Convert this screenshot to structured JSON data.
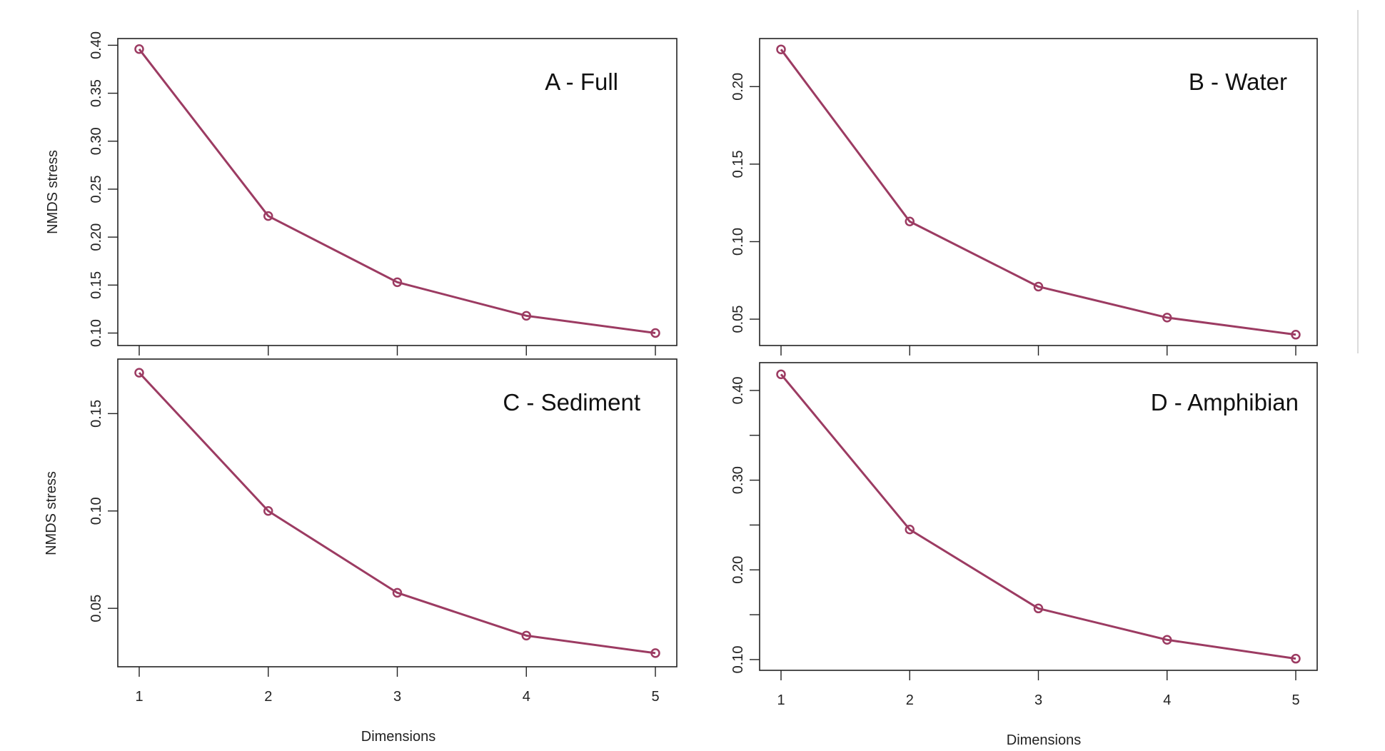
{
  "chart_data": [
    {
      "type": "line",
      "title": "A - Full",
      "xlabel": "",
      "ylabel": "NMDS stress",
      "x": [
        1,
        2,
        3,
        4,
        5
      ],
      "x_ticks": [
        1,
        2,
        3,
        4,
        5
      ],
      "show_x_tick_labels": false,
      "series": [
        {
          "values": [
            0.396,
            0.222,
            0.153,
            0.118,
            0.1
          ]
        }
      ],
      "xlim": [
        0.9,
        5.1
      ],
      "ylim": [
        0.087,
        0.407
      ],
      "y_ticks": [
        0.1,
        0.15,
        0.2,
        0.25,
        0.3,
        0.35,
        0.4
      ],
      "y_tick_labels": [
        "0.10",
        "0.15",
        "0.20",
        "0.25",
        "0.30",
        "0.35",
        "0.40"
      ],
      "grid": false,
      "line_color": "#9c3b62"
    },
    {
      "type": "line",
      "title": "B - Water",
      "xlabel": "",
      "ylabel": "",
      "x": [
        1,
        2,
        3,
        4,
        5
      ],
      "x_ticks": [
        1,
        2,
        3,
        4,
        5
      ],
      "show_x_tick_labels": false,
      "series": [
        {
          "values": [
            0.224,
            0.113,
            0.071,
            0.051,
            0.04
          ]
        }
      ],
      "xlim": [
        0.9,
        5.1
      ],
      "ylim": [
        0.033,
        0.231
      ],
      "y_ticks": [
        0.05,
        0.1,
        0.15,
        0.2
      ],
      "y_tick_labels": [
        "0.05",
        "0.10",
        "0.15",
        "0.20"
      ],
      "grid": false,
      "line_color": "#9c3b62"
    },
    {
      "type": "line",
      "title": "C - Sediment",
      "xlabel": "Dimensions",
      "ylabel": "NMDS stress",
      "x": [
        1,
        2,
        3,
        4,
        5
      ],
      "x_ticks": [
        1,
        2,
        3,
        4,
        5
      ],
      "show_x_tick_labels": true,
      "x_tick_labels": [
        "1",
        "2",
        "3",
        "4",
        "5"
      ],
      "series": [
        {
          "values": [
            0.171,
            0.1,
            0.058,
            0.036,
            0.027
          ]
        }
      ],
      "xlim": [
        0.9,
        5.1
      ],
      "ylim": [
        0.02,
        0.178
      ],
      "y_ticks": [
        0.05,
        0.1,
        0.15
      ],
      "y_tick_labels": [
        "0.05",
        "0.10",
        "0.15"
      ],
      "grid": false,
      "line_color": "#9c3b62"
    },
    {
      "type": "line",
      "title": "D - Amphibian",
      "xlabel": "Dimensions",
      "ylabel": "",
      "x": [
        1,
        2,
        3,
        4,
        5
      ],
      "x_ticks": [
        1,
        2,
        3,
        4,
        5
      ],
      "show_x_tick_labels": true,
      "x_tick_labels": [
        "1",
        "2",
        "3",
        "4",
        "5"
      ],
      "series": [
        {
          "values": [
            0.418,
            0.245,
            0.157,
            0.122,
            0.101
          ]
        }
      ],
      "xlim": [
        0.9,
        5.1
      ],
      "ylim": [
        0.088,
        0.431
      ],
      "y_ticks": [
        0.1,
        0.15,
        0.2,
        0.25,
        0.3,
        0.35,
        0.4
      ],
      "y_tick_labels": [
        "0.10",
        "",
        "0.20",
        "",
        "0.30",
        "",
        "0.40"
      ],
      "grid": false,
      "line_color": "#9c3b62"
    }
  ]
}
